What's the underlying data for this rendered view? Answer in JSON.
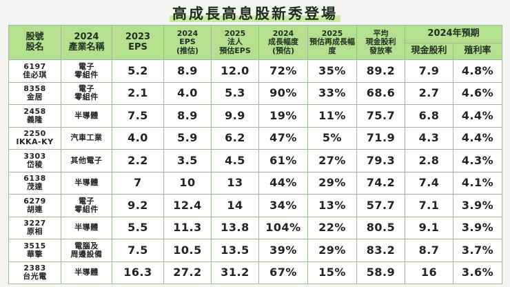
{
  "title": "高成長高息股新秀登場",
  "table": {
    "columns": [
      [
        "股號",
        "股名"
      ],
      [
        "2024",
        "產業名稱"
      ],
      [
        "2023",
        "EPS"
      ],
      [
        "2024",
        "EPS",
        "(推估)"
      ],
      [
        "2025",
        "法人",
        "預估EPS"
      ],
      [
        "2024",
        "成長幅度",
        "(預估)"
      ],
      [
        "2025",
        "預估再成長幅",
        "度"
      ],
      [
        "平均",
        "現金股利",
        "發放率"
      ]
    ],
    "group": "2024年預期",
    "sub_columns": [
      "現金股利",
      "殖利率"
    ],
    "rows": [
      {
        "code": "6197",
        "name": "佳必琪",
        "industry": [
          "電子",
          "零組件"
        ],
        "values": [
          "5.2",
          "8.9",
          "12.0",
          "72%",
          "35%",
          "89.2",
          "7.9",
          "4.8%"
        ]
      },
      {
        "code": "8358",
        "name": "金居",
        "industry": [
          "電子",
          "零組件"
        ],
        "values": [
          "2.1",
          "4.0",
          "5.3",
          "90%",
          "33%",
          "68.6",
          "2.7",
          "4.6%"
        ]
      },
      {
        "code": "2458",
        "name": "義隆",
        "industry": [
          "半導體"
        ],
        "values": [
          "7.5",
          "8.9",
          "9.9",
          "19%",
          "11%",
          "75.7",
          "6.8",
          "4.4%"
        ]
      },
      {
        "code": "2250",
        "name": "IKKA-KY",
        "industry": [
          "汽車工業"
        ],
        "values": [
          "4.0",
          "5.9",
          "6.2",
          "47%",
          "5%",
          "71.9",
          "4.3",
          "4.4%"
        ]
      },
      {
        "code": "3303",
        "name": "岱稜",
        "industry": [
          "其他電子"
        ],
        "values": [
          "2.2",
          "3.5",
          "4.5",
          "61%",
          "27%",
          "79.3",
          "2.8",
          "4.3%"
        ]
      },
      {
        "code": "6138",
        "name": "茂達",
        "industry": [
          "半導體"
        ],
        "values": [
          "7",
          "10",
          "13",
          "44%",
          "29%",
          "74.2",
          "7.4",
          "4.1%"
        ]
      },
      {
        "code": "6279",
        "name": "胡連",
        "industry": [
          "電子",
          "零組件"
        ],
        "values": [
          "9.2",
          "12.4",
          "14",
          "34%",
          "13%",
          "57.7",
          "7.1",
          "3.9%"
        ]
      },
      {
        "code": "3227",
        "name": "原相",
        "industry": [
          "半導體"
        ],
        "values": [
          "5.5",
          "11.3",
          "13.8",
          "104%",
          "22%",
          "80.5",
          "9.1",
          "3.9%"
        ]
      },
      {
        "code": "3515",
        "name": "華擎",
        "industry": [
          "電腦及",
          "周邊設備"
        ],
        "values": [
          "7.5",
          "10.5",
          "13.5",
          "39%",
          "29%",
          "83.2",
          "8.7",
          "3.7%"
        ]
      },
      {
        "code": "2383",
        "name": "台光電",
        "industry": [
          "半導體"
        ],
        "values": [
          "16.3",
          "27.2",
          "31.2",
          "67%",
          "15%",
          "58.9",
          "16",
          "3.6%"
        ]
      }
    ]
  }
}
